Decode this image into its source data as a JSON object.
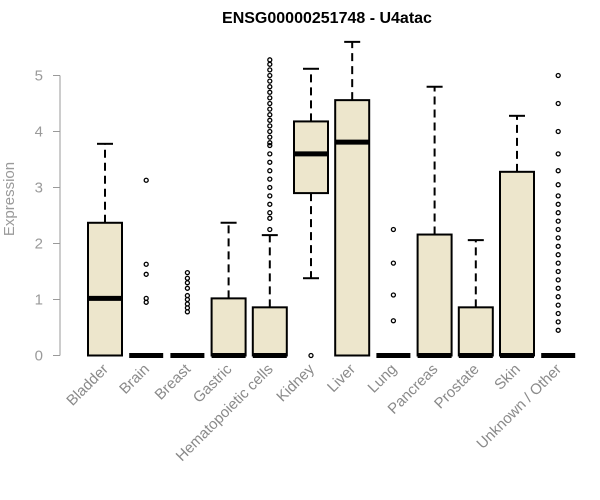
{
  "chart_data": {
    "type": "boxplot",
    "title": "ENSG00000251748 - U4atac",
    "xlabel": "",
    "ylabel": "Expression",
    "ylim": [
      0,
      5.6
    ],
    "yticks": [
      0,
      1,
      2,
      3,
      4,
      5
    ],
    "grid": false,
    "legend": "none",
    "colors": {
      "box_fill": "#ede6cc",
      "box_stroke": "#000000",
      "axis": "#9a9a9a",
      "text": "#8a8a8a"
    },
    "categories": [
      "Bladder",
      "Brain",
      "Breast",
      "Gastric",
      "Hematopoietic cells",
      "Kidney",
      "Liver",
      "Lung",
      "Pancreas",
      "Prostate",
      "Skin",
      "Unknown / Other"
    ],
    "boxes": [
      {
        "category": "Bladder",
        "whisker_low": 0,
        "q1": 0,
        "median": 1.02,
        "q3": 2.37,
        "whisker_high": 3.78,
        "outliers": []
      },
      {
        "category": "Brain",
        "whisker_low": 0,
        "q1": 0,
        "median": 0,
        "q3": 0,
        "whisker_high": 0,
        "outliers": [
          0.95,
          1.02,
          1.45,
          1.63,
          3.13
        ]
      },
      {
        "category": "Breast",
        "whisker_low": 0,
        "q1": 0,
        "median": 0,
        "q3": 0,
        "whisker_high": 0,
        "outliers": [
          0.78,
          0.85,
          0.92,
          1.0,
          1.07,
          1.2,
          1.3,
          1.38,
          1.48
        ]
      },
      {
        "category": "Gastric",
        "whisker_low": 0,
        "q1": 0,
        "median": 0,
        "q3": 1.02,
        "whisker_high": 2.37,
        "outliers": []
      },
      {
        "category": "Hematopoietic cells",
        "whisker_low": 0,
        "q1": 0,
        "median": 0,
        "q3": 0.86,
        "whisker_high": 2.15,
        "outliers": [
          2.25,
          2.45,
          2.55,
          2.7,
          2.85,
          3.0,
          3.15,
          3.3,
          3.45,
          3.6,
          3.75,
          3.8,
          3.9,
          4.0,
          4.1,
          4.2,
          4.3,
          4.4,
          4.5,
          4.6,
          4.7,
          4.8,
          4.9,
          5.0,
          5.1,
          5.2,
          5.28
        ]
      },
      {
        "category": "Kidney",
        "whisker_low": 1.38,
        "q1": 2.9,
        "median": 3.6,
        "q3": 4.18,
        "whisker_high": 5.12,
        "outliers": [
          0
        ]
      },
      {
        "category": "Liver",
        "whisker_low": 0,
        "q1": 0,
        "median": 3.81,
        "q3": 4.56,
        "whisker_high": 5.6,
        "outliers": []
      },
      {
        "category": "Lung",
        "whisker_low": 0,
        "q1": 0,
        "median": 0,
        "q3": 0,
        "whisker_high": 0,
        "outliers": [
          0.62,
          1.08,
          1.65,
          2.25
        ]
      },
      {
        "category": "Pancreas",
        "whisker_low": 0,
        "q1": 0,
        "median": 0,
        "q3": 2.16,
        "whisker_high": 4.8,
        "outliers": []
      },
      {
        "category": "Prostate",
        "whisker_low": 0,
        "q1": 0,
        "median": 0,
        "q3": 0.86,
        "whisker_high": 2.06,
        "outliers": []
      },
      {
        "category": "Skin",
        "whisker_low": 0,
        "q1": 0,
        "median": 0,
        "q3": 3.28,
        "whisker_high": 4.28,
        "outliers": []
      },
      {
        "category": "Unknown / Other",
        "whisker_low": 0,
        "q1": 0,
        "median": 0,
        "q3": 0,
        "whisker_high": 0,
        "outliers": [
          0.45,
          0.6,
          0.75,
          0.9,
          1.05,
          1.2,
          1.35,
          1.5,
          1.65,
          1.8,
          1.95,
          2.1,
          2.25,
          2.4,
          2.55,
          2.7,
          2.85,
          3.05,
          3.3,
          3.6,
          4.0,
          4.5,
          5.0
        ]
      }
    ]
  }
}
